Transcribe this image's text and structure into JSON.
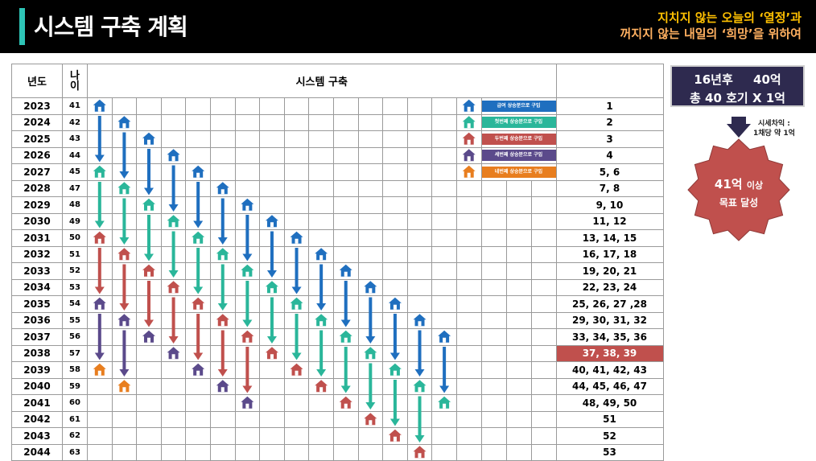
{
  "header": {
    "title": "시스템 구축 계획",
    "slogan_line1": "지치지 않는 오늘의 ‘열정’과",
    "slogan_line2": "꺼지지 않는 내일의 ‘희망’을 위하여"
  },
  "table": {
    "headers": {
      "year": "년도",
      "age": "나\n이",
      "system": "시스템 구축"
    },
    "rows": [
      {
        "year": "2023",
        "age": "41",
        "count": "1"
      },
      {
        "year": "2024",
        "age": "42",
        "count": "2"
      },
      {
        "year": "2025",
        "age": "43",
        "count": "3"
      },
      {
        "year": "2026",
        "age": "44",
        "count": "4"
      },
      {
        "year": "2027",
        "age": "45",
        "count": "5, 6"
      },
      {
        "year": "2028",
        "age": "47",
        "count": "7, 8"
      },
      {
        "year": "2029",
        "age": "48",
        "count": "9, 10"
      },
      {
        "year": "2030",
        "age": "49",
        "count": "11, 12"
      },
      {
        "year": "2031",
        "age": "50",
        "count": "13, 14, 15"
      },
      {
        "year": "2032",
        "age": "51",
        "count": "16, 17, 18"
      },
      {
        "year": "2033",
        "age": "52",
        "count": "19, 20, 21"
      },
      {
        "year": "2034",
        "age": "53",
        "count": "22, 23, 24"
      },
      {
        "year": "2035",
        "age": "54",
        "count": "25, 26, 27 ,28"
      },
      {
        "year": "2036",
        "age": "55",
        "count": "29, 30, 31, 32"
      },
      {
        "year": "2037",
        "age": "56",
        "count": "33, 34, 35, 36"
      },
      {
        "year": "2038",
        "age": "57",
        "count": "37, 38, 39",
        "highlight": true
      },
      {
        "year": "2039",
        "age": "58",
        "count": "40, 41, 42, 43"
      },
      {
        "year": "2040",
        "age": "59",
        "count": "44, 45, 46, 47"
      },
      {
        "year": "2041",
        "age": "60",
        "count": "48, 49, 50"
      },
      {
        "year": "2042",
        "age": "61",
        "count": "51"
      },
      {
        "year": "2043",
        "age": "62",
        "count": "52"
      },
      {
        "year": "2044",
        "age": "63",
        "count": "53"
      }
    ]
  },
  "legend": [
    {
      "label": "급여 상승분으로 구입",
      "color": "#1f6fbf"
    },
    {
      "label": "첫번째 상승분으로 구입",
      "color": "#2ab69a"
    },
    {
      "label": "두번째 상승분으로 구입",
      "color": "#c0504d"
    },
    {
      "label": "세번째 상승분으로 구입",
      "color": "#5b4a8b"
    },
    {
      "label": "네번째 상승분으로 구입",
      "color": "#e87e1f"
    }
  ],
  "colors": {
    "blue": "#1f6fbf",
    "teal": "#2ab69a",
    "red": "#c0504d",
    "purple": "#5b4a8b",
    "orange": "#e87e1f",
    "highlight": "#c0504d",
    "summary_bg": "#2e2a4f",
    "badge": "#c0504d"
  },
  "houses": [
    [
      0,
      0,
      "blue"
    ],
    [
      0,
      4,
      "teal"
    ],
    [
      0,
      8,
      "red"
    ],
    [
      0,
      12,
      "purple"
    ],
    [
      0,
      16,
      "orange"
    ],
    [
      1,
      1,
      "blue"
    ],
    [
      1,
      5,
      "teal"
    ],
    [
      1,
      9,
      "red"
    ],
    [
      1,
      13,
      "purple"
    ],
    [
      1,
      17,
      "orange"
    ],
    [
      2,
      2,
      "blue"
    ],
    [
      2,
      6,
      "teal"
    ],
    [
      2,
      10,
      "red"
    ],
    [
      2,
      14,
      "purple"
    ],
    [
      3,
      3,
      "blue"
    ],
    [
      3,
      7,
      "teal"
    ],
    [
      3,
      11,
      "red"
    ],
    [
      3,
      15,
      "purple"
    ],
    [
      4,
      4,
      "blue"
    ],
    [
      4,
      8,
      "teal"
    ],
    [
      4,
      12,
      "red"
    ],
    [
      4,
      16,
      "purple"
    ],
    [
      5,
      5,
      "blue"
    ],
    [
      5,
      9,
      "teal"
    ],
    [
      5,
      13,
      "red"
    ],
    [
      5,
      17,
      "purple"
    ],
    [
      6,
      6,
      "blue"
    ],
    [
      6,
      10,
      "teal"
    ],
    [
      6,
      14,
      "red"
    ],
    [
      6,
      18,
      "purple"
    ],
    [
      7,
      7,
      "blue"
    ],
    [
      7,
      11,
      "teal"
    ],
    [
      7,
      15,
      "red"
    ],
    [
      8,
      8,
      "blue"
    ],
    [
      8,
      12,
      "teal"
    ],
    [
      8,
      16,
      "red"
    ],
    [
      9,
      9,
      "blue"
    ],
    [
      9,
      13,
      "teal"
    ],
    [
      9,
      17,
      "red"
    ],
    [
      10,
      10,
      "blue"
    ],
    [
      10,
      14,
      "teal"
    ],
    [
      10,
      18,
      "red"
    ],
    [
      11,
      11,
      "blue"
    ],
    [
      11,
      15,
      "teal"
    ],
    [
      11,
      19,
      "red"
    ],
    [
      12,
      12,
      "blue"
    ],
    [
      12,
      16,
      "teal"
    ],
    [
      12,
      20,
      "red"
    ],
    [
      13,
      13,
      "blue"
    ],
    [
      13,
      17,
      "teal"
    ],
    [
      13,
      21,
      "red"
    ],
    [
      14,
      14,
      "blue"
    ],
    [
      14,
      18,
      "teal"
    ],
    [
      15,
      0,
      "blue"
    ],
    [
      15,
      1,
      "teal"
    ],
    [
      15,
      2,
      "red"
    ],
    [
      15,
      3,
      "purple"
    ],
    [
      15,
      4,
      "orange"
    ]
  ],
  "arrows": [
    [
      0,
      1,
      3,
      "blue"
    ],
    [
      0,
      5,
      7,
      "teal"
    ],
    [
      0,
      9,
      11,
      "red"
    ],
    [
      0,
      13,
      15,
      "purple"
    ],
    [
      1,
      2,
      4,
      "blue"
    ],
    [
      1,
      6,
      8,
      "teal"
    ],
    [
      1,
      10,
      12,
      "red"
    ],
    [
      1,
      14,
      16,
      "purple"
    ],
    [
      2,
      3,
      5,
      "blue"
    ],
    [
      2,
      7,
      9,
      "teal"
    ],
    [
      2,
      11,
      13,
      "red"
    ],
    [
      3,
      4,
      6,
      "blue"
    ],
    [
      3,
      8,
      10,
      "teal"
    ],
    [
      3,
      12,
      14,
      "red"
    ],
    [
      4,
      5,
      7,
      "blue"
    ],
    [
      4,
      9,
      11,
      "teal"
    ],
    [
      4,
      13,
      15,
      "red"
    ],
    [
      5,
      6,
      8,
      "blue"
    ],
    [
      5,
      10,
      12,
      "teal"
    ],
    [
      5,
      14,
      16,
      "red"
    ],
    [
      6,
      7,
      9,
      "blue"
    ],
    [
      6,
      11,
      13,
      "teal"
    ],
    [
      6,
      15,
      17,
      "red"
    ],
    [
      7,
      8,
      10,
      "blue"
    ],
    [
      7,
      12,
      14,
      "teal"
    ],
    [
      8,
      9,
      11,
      "blue"
    ],
    [
      8,
      13,
      15,
      "teal"
    ],
    [
      9,
      10,
      12,
      "blue"
    ],
    [
      9,
      14,
      16,
      "teal"
    ],
    [
      10,
      11,
      13,
      "blue"
    ],
    [
      10,
      15,
      17,
      "teal"
    ],
    [
      11,
      12,
      14,
      "blue"
    ],
    [
      11,
      16,
      18,
      "teal"
    ],
    [
      12,
      13,
      15,
      "blue"
    ],
    [
      12,
      17,
      19,
      "teal"
    ],
    [
      13,
      14,
      16,
      "blue"
    ],
    [
      13,
      18,
      20,
      "teal"
    ],
    [
      14,
      15,
      17,
      "blue"
    ]
  ],
  "summary": {
    "years": "16년후",
    "amount": "40억",
    "detail": "총 40 호기 X 1억"
  },
  "market_note": {
    "line1": "시세차익 :",
    "line2": "1채당 약 1억"
  },
  "badge": {
    "main": "41억",
    "suffix": "이상",
    "sub": "목표 달성"
  }
}
